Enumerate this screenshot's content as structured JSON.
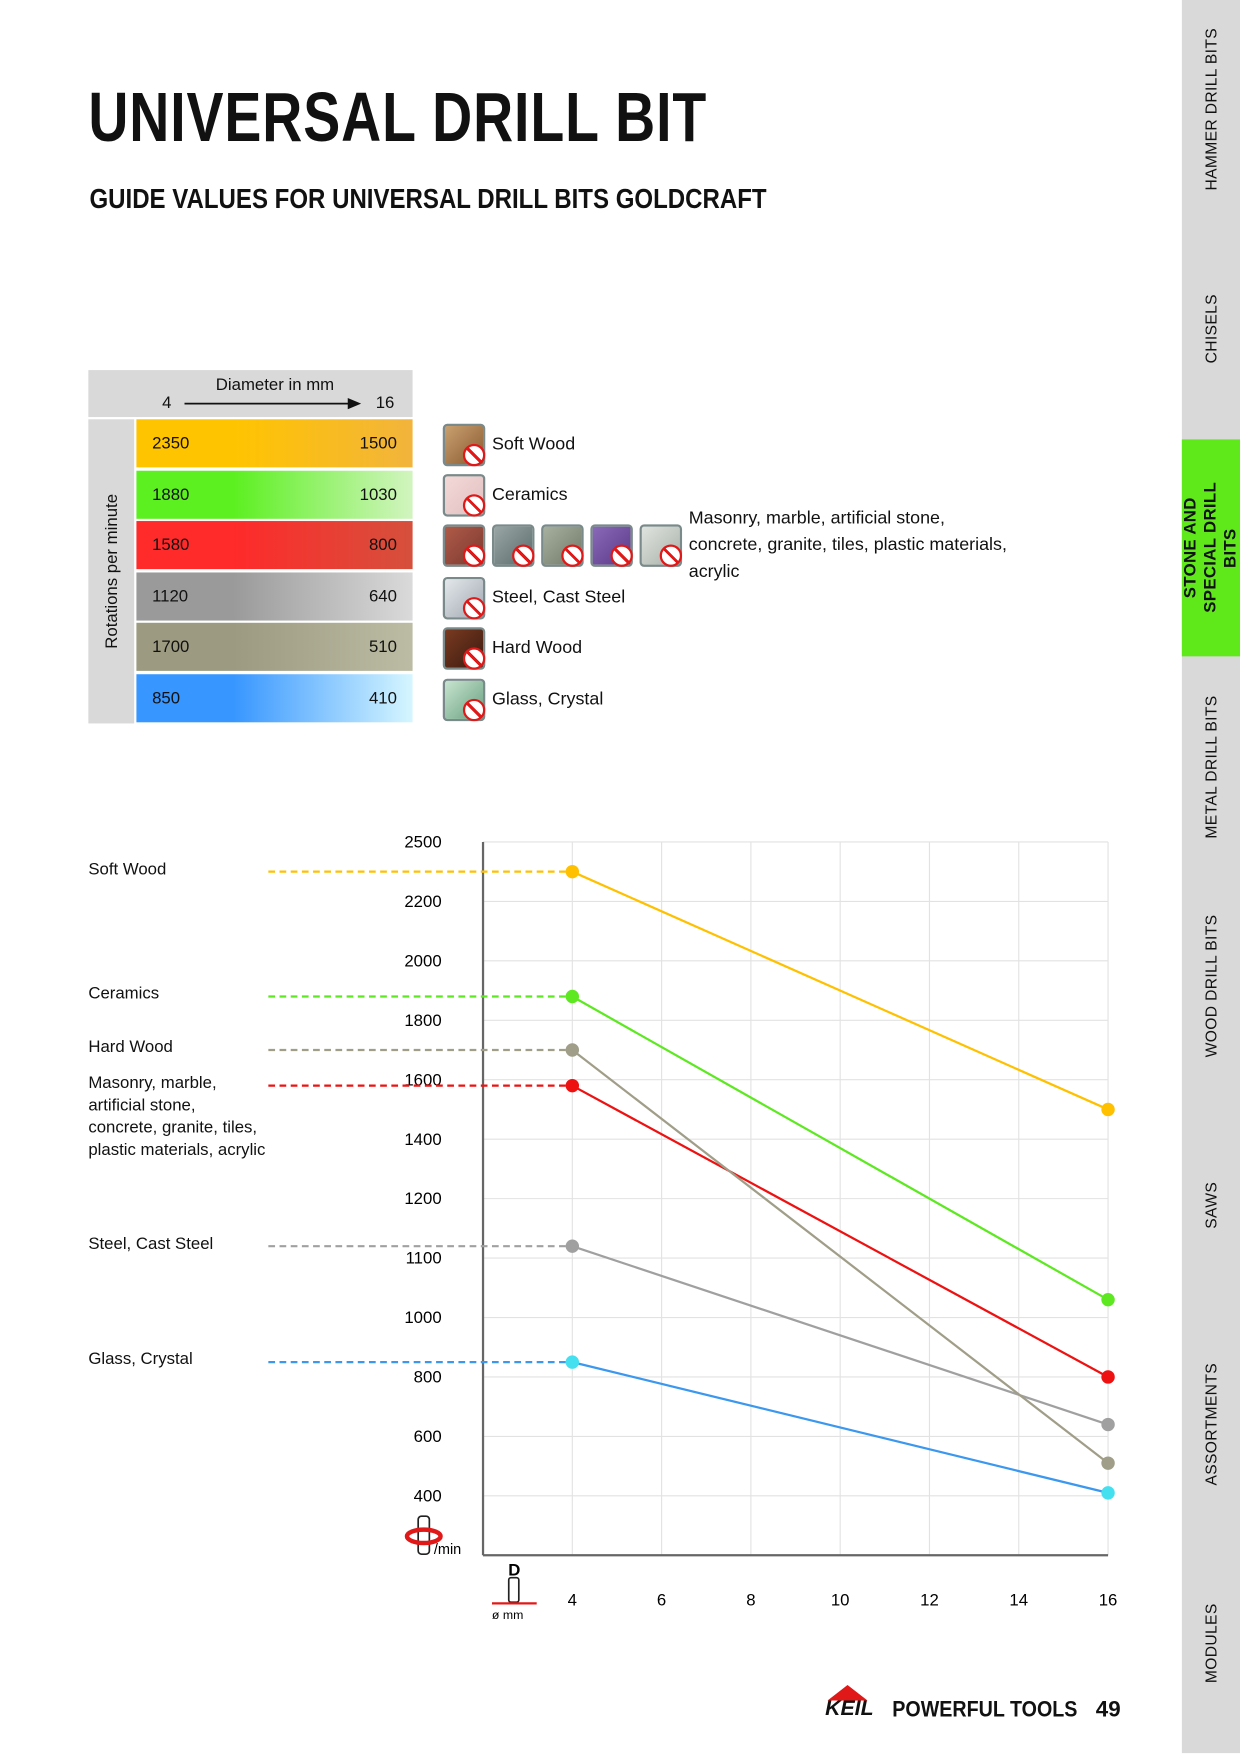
{
  "header": {
    "title": "UNIVERSAL DRILL BIT",
    "subtitle": "GUIDE VALUES FOR UNIVERSAL DRILL BITS GOLDCRAFT"
  },
  "table": {
    "header": {
      "title": "Diameter in mm",
      "from": "4",
      "to": "16"
    },
    "row_label": "Rotations per minute",
    "rows": [
      {
        "from": 2350,
        "to": 1500,
        "material": "Soft Wood",
        "colors": [
          "#ffc400",
          "#f2b43c"
        ]
      },
      {
        "from": 1880,
        "to": 1030,
        "material": "Ceramics",
        "colors": [
          "#5cf020",
          "#d2f4c0"
        ]
      },
      {
        "from": 1580,
        "to": 800,
        "material": "Masonry, marble, artificial stone, concrete, granite, tiles, plastic materials, acrylic",
        "colors": [
          "#ff2a2a",
          "#d5503c"
        ]
      },
      {
        "from": 1120,
        "to": 640,
        "material": "Steel, Cast Steel",
        "colors": [
          "#9a9a9a",
          "#dadada"
        ]
      },
      {
        "from": 1700,
        "to": 510,
        "material": "Hard Wood",
        "colors": [
          "#9c9a80",
          "#bcbca4"
        ]
      },
      {
        "from": 850,
        "to": 410,
        "material": "Glass, Crystal",
        "colors": [
          "#3796ff",
          "#d6f6ff"
        ]
      }
    ]
  },
  "chart_data": {
    "type": "line",
    "x_axis_label": "ø mm",
    "x_axis_symbol": "D",
    "y_axis_label": "/min",
    "xlim": [
      2,
      16
    ],
    "xticks": [
      4,
      6,
      8,
      10,
      12,
      14,
      16
    ],
    "ylim": [
      200,
      2500
    ],
    "yticks": [
      400,
      600,
      800,
      1000,
      1100,
      1200,
      1400,
      1600,
      1800,
      2000,
      2200,
      2500
    ],
    "y_scale": "piecewise-even",
    "grid": true,
    "series": [
      {
        "name": "Soft Wood",
        "color": "#ffc000",
        "x": [
          4,
          16
        ],
        "values": [
          2350,
          1500
        ]
      },
      {
        "name": "Ceramics",
        "color": "#5ee822",
        "x": [
          4,
          16
        ],
        "values": [
          1880,
          1030
        ]
      },
      {
        "name": "Masonry, marble, artificial stone, concrete, granite, tiles, plastic materials, acrylic",
        "color": "#ee1111",
        "x": [
          4,
          16
        ],
        "values": [
          1580,
          800
        ]
      },
      {
        "name": "Steel, Cast Steel",
        "color": "#a0a0a0",
        "x": [
          4,
          16
        ],
        "values": [
          1120,
          640
        ]
      },
      {
        "name": "Hard Wood",
        "color": "#a09e88",
        "x": [
          4,
          16
        ],
        "values": [
          1700,
          510
        ]
      },
      {
        "name": "Glass, Crystal",
        "color": "#3b98ee",
        "marker_color": "#44e0f0",
        "x": [
          4,
          16
        ],
        "values": [
          850,
          410
        ]
      }
    ]
  },
  "sidebar": {
    "tabs": [
      "HAMMER DRILL BITS",
      "CHISELS",
      "STONE AND SPECIAL DRILL BITS",
      "METAL DRILL BITS",
      "WOOD DRILL BITS",
      "SAWS",
      "ASSORTMENTS",
      "MODULES"
    ]
  },
  "footer": {
    "logo": "KEIL",
    "slogan": "POWERFUL TOOLS",
    "page": "49"
  }
}
